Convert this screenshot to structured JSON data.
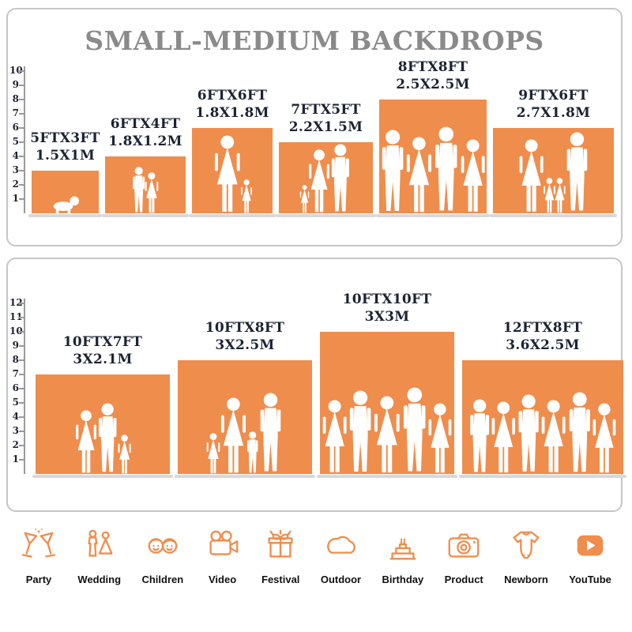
{
  "title": "SMALL-MEDIUM BACKDROPS",
  "accent": "#EF8D4D",
  "panels": [
    {
      "ruler_max": 10,
      "backdrops": [
        {
          "size_ft": "5FTX3FT",
          "size_m": "1.5X1M",
          "w_ft": 5,
          "h_ft": 3,
          "figures": [
            {
              "t": "baby",
              "h": 1.3
            }
          ]
        },
        {
          "size_ft": "6FTX4FT",
          "size_m": "1.8X1.2M",
          "w_ft": 6,
          "h_ft": 4,
          "figures": [
            {
              "t": "boy",
              "h": 3.3
            },
            {
              "t": "girl",
              "h": 2.9
            }
          ]
        },
        {
          "size_ft": "6FTX6FT",
          "size_m": "1.8X1.8M",
          "w_ft": 6,
          "h_ft": 6,
          "figures": [
            {
              "t": "woman",
              "h": 5.5
            },
            {
              "t": "girl",
              "h": 2.4
            }
          ]
        },
        {
          "size_ft": "7FTX5FT",
          "size_m": "2.2X1.5M",
          "w_ft": 7,
          "h_ft": 5,
          "figures": [
            {
              "t": "girl",
              "h": 2.0
            },
            {
              "t": "woman",
              "h": 4.5
            },
            {
              "t": "man",
              "h": 4.9
            }
          ]
        },
        {
          "size_ft": "8FTX8FT",
          "size_m": "2.5X2.5M",
          "w_ft": 8,
          "h_ft": 8,
          "figures": [
            {
              "t": "man",
              "h": 5.9
            },
            {
              "t": "woman",
              "h": 5.4
            },
            {
              "t": "man",
              "h": 6.1
            },
            {
              "t": "woman",
              "h": 5.2
            }
          ]
        },
        {
          "size_ft": "9FTX6FT",
          "size_m": "2.7X1.8M",
          "w_ft": 9,
          "h_ft": 6,
          "figures": [
            {
              "t": "woman",
              "h": 5.2
            },
            {
              "t": "girl",
              "h": 2.5
            },
            {
              "t": "girl",
              "h": 2.5
            },
            {
              "t": "man",
              "h": 5.7
            }
          ]
        }
      ]
    },
    {
      "ruler_max": 12,
      "backdrops": [
        {
          "size_ft": "10FTX7FT",
          "size_m": "3X2.1M",
          "w_ft": 10,
          "h_ft": 7,
          "figures": [
            {
              "t": "woman",
              "h": 4.5
            },
            {
              "t": "man",
              "h": 5.0
            },
            {
              "t": "girl",
              "h": 2.8
            }
          ]
        },
        {
          "size_ft": "10FTX8FT",
          "size_m": "3X2.5M",
          "w_ft": 10,
          "h_ft": 8,
          "figures": [
            {
              "t": "girl",
              "h": 2.9
            },
            {
              "t": "woman",
              "h": 5.4
            },
            {
              "t": "boy",
              "h": 3.0
            },
            {
              "t": "man",
              "h": 5.7
            }
          ]
        },
        {
          "size_ft": "10FTX10FT",
          "size_m": "3X3M",
          "w_ft": 10,
          "h_ft": 10,
          "figures": [
            {
              "t": "woman",
              "h": 5.2
            },
            {
              "t": "man",
              "h": 5.9
            },
            {
              "t": "woman",
              "h": 5.5
            },
            {
              "t": "man",
              "h": 6.1
            },
            {
              "t": "woman",
              "h": 5.0
            }
          ]
        },
        {
          "size_ft": "12FTX8FT",
          "size_m": "3.6X2.5M",
          "w_ft": 12,
          "h_ft": 8,
          "figures": [
            {
              "t": "man",
              "h": 5.3
            },
            {
              "t": "woman",
              "h": 5.1
            },
            {
              "t": "man",
              "h": 5.6
            },
            {
              "t": "woman",
              "h": 5.2
            },
            {
              "t": "man",
              "h": 5.8
            },
            {
              "t": "woman",
              "h": 5.0
            }
          ]
        }
      ]
    }
  ],
  "categories": [
    {
      "label": "Party"
    },
    {
      "label": "Wedding"
    },
    {
      "label": "Children"
    },
    {
      "label": "Video"
    },
    {
      "label": "Festival"
    },
    {
      "label": "Outdoor"
    },
    {
      "label": "Birthday"
    },
    {
      "label": "Product"
    },
    {
      "label": "Newborn"
    },
    {
      "label": "YouTube"
    }
  ]
}
